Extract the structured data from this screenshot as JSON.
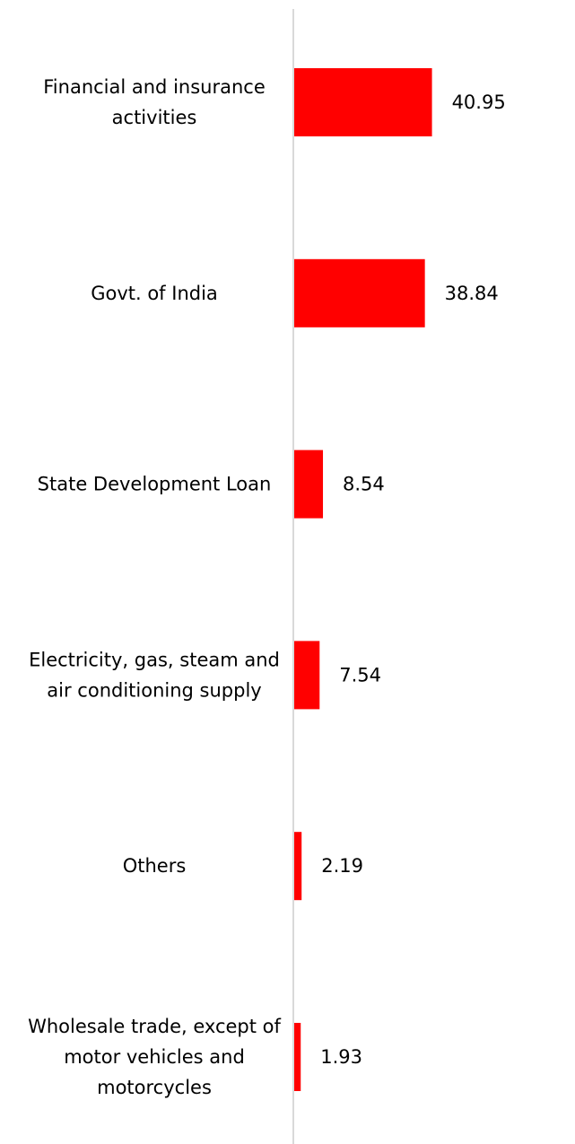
{
  "chart_data": {
    "type": "bar",
    "orientation": "horizontal",
    "categories": [
      "Financial and insurance activities",
      "Govt. of India",
      "State Development Loan",
      "Electricity, gas, steam and air conditioning supply",
      "Others",
      "Wholesale trade, except of motor vehicles and motorcycles"
    ],
    "category_lines": [
      [
        "Financial and insurance",
        "activities"
      ],
      [
        "Govt. of India"
      ],
      [
        "State Development Loan"
      ],
      [
        "Electricity, gas, steam and",
        "air conditioning supply"
      ],
      [
        "Others"
      ],
      [
        "Wholesale trade, except of",
        "motor vehicles and",
        "motorcycles"
      ]
    ],
    "values": [
      40.95,
      38.84,
      8.54,
      7.54,
      2.19,
      1.93
    ],
    "value_labels": [
      "40.95",
      "38.84",
      "8.54",
      "7.54",
      "2.19",
      "1.93"
    ],
    "title": "",
    "xlabel": "",
    "ylabel": "",
    "xlim": [
      0,
      50
    ],
    "grid": false,
    "legend": "none",
    "colors": {
      "bar": "#ff0000",
      "axis": "#d9d9d9",
      "text": "#000000"
    }
  }
}
